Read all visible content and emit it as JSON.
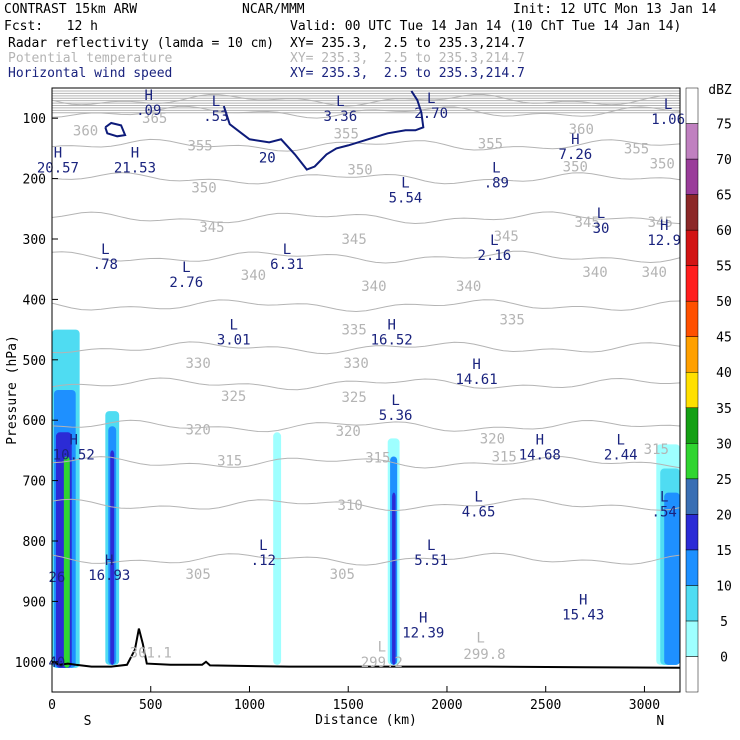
{
  "header": {
    "title": "CONTRAST 15km ARW",
    "center": "NCAR/MMM",
    "init": "Init: 12 UTC Mon 13 Jan 14",
    "fcst": "Fcst:   12 h",
    "valid": "Valid: 00 UTC Tue 14 Jan 14 (10 ChT Tue 14 Jan 14)",
    "fields": [
      {
        "name": "Radar reflectivity (lamda = 10 cm)",
        "xy": "XY= 235.3,  2.5 to 235.3,214.7",
        "style": "black"
      },
      {
        "name": "Potential temperature",
        "xy": "XY= 235.3,  2.5 to 235.3,214.7",
        "style": "light"
      },
      {
        "name": "Horizontal wind speed",
        "xy": "XY= 235.3,  2.5 to 235.3,214.7",
        "style": "blue"
      }
    ]
  },
  "chart_data": {
    "type": "cross-section",
    "xlabel": "Distance (km)",
    "ylabel": "Pressure (hPa)",
    "x_ticks": [
      0,
      500,
      1000,
      1500,
      2000,
      2500,
      3000
    ],
    "y_ticks": [
      100,
      200,
      300,
      400,
      500,
      600,
      700,
      800,
      900,
      1000
    ],
    "xlim": [
      0,
      3180
    ],
    "ylim": [
      1050,
      50
    ],
    "x_end_labels": {
      "left": "S",
      "right": "N"
    },
    "colorbar": {
      "unit": "dBZ",
      "levels": [
        0,
        5,
        10,
        15,
        20,
        25,
        30,
        35,
        40,
        45,
        50,
        55,
        60,
        65,
        70,
        75
      ],
      "colors": [
        "#ffffff",
        "#9effff",
        "#4fdcf2",
        "#1e90ff",
        "#2b2bd6",
        "#3a6fb4",
        "#30d530",
        "#14a014",
        "#ffe000",
        "#ffa000",
        "#ff5000",
        "#ff1e1e",
        "#d21414",
        "#8c2828",
        "#9a3c9a",
        "#c080c0",
        "#ffffff"
      ]
    },
    "theta_contours": [
      {
        "label": "365",
        "p": 70
      },
      {
        "label": "360",
        "p": 90
      },
      {
        "label": "355",
        "p": 145
      },
      {
        "label": "350",
        "p": 200
      },
      {
        "label": "345",
        "p": 265
      },
      {
        "label": "340",
        "p": 330
      },
      {
        "label": "335",
        "p": 410
      },
      {
        "label": "330",
        "p": 480
      },
      {
        "label": "325",
        "p": 540
      },
      {
        "label": "320",
        "p": 610
      },
      {
        "label": "315",
        "p": 670
      },
      {
        "label": "310",
        "p": 740
      },
      {
        "label": "305",
        "p": 830
      }
    ],
    "theta_labels": [
      {
        "text": "360",
        "x": 170,
        "p": 120
      },
      {
        "text": "365",
        "x": 520,
        "p": 100
      },
      {
        "text": "355",
        "x": 750,
        "p": 145
      },
      {
        "text": "355",
        "x": 1490,
        "p": 125
      },
      {
        "text": "355",
        "x": 2220,
        "p": 142
      },
      {
        "text": "360",
        "x": 2680,
        "p": 118
      },
      {
        "text": "355",
        "x": 2960,
        "p": 150
      },
      {
        "text": "350",
        "x": 770,
        "p": 215
      },
      {
        "text": "350",
        "x": 1560,
        "p": 185
      },
      {
        "text": "350",
        "x": 2650,
        "p": 180
      },
      {
        "text": "350",
        "x": 3090,
        "p": 175
      },
      {
        "text": "345",
        "x": 810,
        "p": 280
      },
      {
        "text": "345",
        "x": 1530,
        "p": 300
      },
      {
        "text": "345",
        "x": 2300,
        "p": 295
      },
      {
        "text": "345",
        "x": 2710,
        "p": 272
      },
      {
        "text": "345",
        "x": 3080,
        "p": 272
      },
      {
        "text": "340",
        "x": 1020,
        "p": 360
      },
      {
        "text": "340",
        "x": 1630,
        "p": 378
      },
      {
        "text": "340",
        "x": 2110,
        "p": 378
      },
      {
        "text": "340",
        "x": 2750,
        "p": 355
      },
      {
        "text": "340",
        "x": 3050,
        "p": 355
      },
      {
        "text": "335",
        "x": 1530,
        "p": 450
      },
      {
        "text": "335",
        "x": 2330,
        "p": 433
      },
      {
        "text": "330",
        "x": 740,
        "p": 505
      },
      {
        "text": "330",
        "x": 1540,
        "p": 505
      },
      {
        "text": "325",
        "x": 920,
        "p": 560
      },
      {
        "text": "325",
        "x": 1530,
        "p": 562
      },
      {
        "text": "320",
        "x": 740,
        "p": 615
      },
      {
        "text": "320",
        "x": 1500,
        "p": 618
      },
      {
        "text": "320",
        "x": 2230,
        "p": 630
      },
      {
        "text": "315",
        "x": 3060,
        "p": 648
      },
      {
        "text": "315",
        "x": 900,
        "p": 667
      },
      {
        "text": "315",
        "x": 1650,
        "p": 662
      },
      {
        "text": "315",
        "x": 2290,
        "p": 660
      },
      {
        "text": "310",
        "x": 1510,
        "p": 740
      },
      {
        "text": "305",
        "x": 740,
        "p": 855
      },
      {
        "text": "305",
        "x": 1470,
        "p": 855
      },
      {
        "text": "301.1",
        "x": 500,
        "p": 985
      },
      {
        "text": "299.2",
        "x": 1670,
        "p": 1000
      },
      {
        "text": "299.8",
        "x": 2190,
        "p": 987
      }
    ],
    "theta_extrema": [
      {
        "type": "L",
        "value": "299.2",
        "x": 1670,
        "p": 975
      },
      {
        "type": "L",
        "value": "299.8",
        "x": 2170,
        "p": 960
      }
    ],
    "wind_extrema": [
      {
        "type": "H",
        "value": ".09",
        "x": 490,
        "p": 70
      },
      {
        "type": "L",
        "value": ".53",
        "x": 830,
        "p": 80
      },
      {
        "type": "L",
        "value": "3.36",
        "x": 1460,
        "p": 80
      },
      {
        "type": "L",
        "value": "2.70",
        "x": 1920,
        "p": 75
      },
      {
        "type": "L",
        "value": "1.06",
        "x": 3120,
        "p": 85
      },
      {
        "type": "H",
        "value": "20.57",
        "x": 30,
        "p": 165
      },
      {
        "type": "H",
        "value": "21.53",
        "x": 420,
        "p": 165
      },
      {
        "type": "H",
        "value": "7.26",
        "x": 2650,
        "p": 143
      },
      {
        "type": "L",
        "value": ".89",
        "x": 2250,
        "p": 190
      },
      {
        "type": "L",
        "value": "5.54",
        "x": 1790,
        "p": 215
      },
      {
        "type": "L",
        "value": "30",
        "x": 2780,
        "p": 265
      },
      {
        "type": "H",
        "value": "12.9",
        "x": 3100,
        "p": 285
      },
      {
        "type": "L",
        "value": "2.16",
        "x": 2240,
        "p": 310
      },
      {
        "type": "L",
        "value": ".78",
        "x": 270,
        "p": 325
      },
      {
        "type": "L",
        "value": "6.31",
        "x": 1190,
        "p": 325
      },
      {
        "type": "L",
        "value": "2.76",
        "x": 680,
        "p": 355
      },
      {
        "type": "L",
        "value": "3.01",
        "x": 920,
        "p": 450
      },
      {
        "type": "H",
        "value": "16.52",
        "x": 1720,
        "p": 450
      },
      {
        "type": "H",
        "value": "14.61",
        "x": 2150,
        "p": 515
      },
      {
        "type": "L",
        "value": "5.36",
        "x": 1740,
        "p": 575
      },
      {
        "type": "H",
        "value": "10.52",
        "x": 110,
        "p": 640
      },
      {
        "type": "H",
        "value": "14.68",
        "x": 2470,
        "p": 640
      },
      {
        "type": "L",
        "value": "2.44",
        "x": 2880,
        "p": 640
      },
      {
        "type": "L",
        "value": "4.65",
        "x": 2160,
        "p": 735
      },
      {
        "type": "L",
        "value": ".54",
        "x": 3100,
        "p": 735
      },
      {
        "type": "L",
        "value": ".12",
        "x": 1070,
        "p": 815
      },
      {
        "type": "L",
        "value": "5.51",
        "x": 1920,
        "p": 815
      },
      {
        "type": "H",
        "value": "16.93",
        "x": 290,
        "p": 840
      },
      {
        "type": "H",
        "value": "15.43",
        "x": 2690,
        "p": 905
      },
      {
        "type": "H",
        "value": "12.39",
        "x": 1880,
        "p": 935
      }
    ],
    "wind_contour_label": {
      "text": "20",
      "x": 1090,
      "p": 165
    },
    "partial_labels": [
      {
        "text": "26",
        "x": 25,
        "p": 860
      },
      {
        "text": "40",
        "x": 25,
        "p": 1000
      }
    ]
  }
}
